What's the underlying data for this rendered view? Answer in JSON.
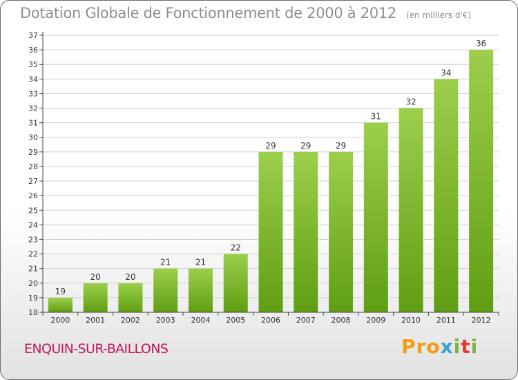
{
  "title": "Dotation Globale de Fonctionnement de 2000 à 2012",
  "subtitle": "(en milliers d'€)",
  "town": "ENQUIN-SUR-BAILLONS",
  "logo": {
    "p1": "Pro",
    "p2": "x",
    "p3": "i",
    "p4": "t",
    "p5": "i"
  },
  "colors": {
    "bar_light": "#9ccf4c",
    "bar_dark": "#5f9e12",
    "title": "#8e8e8e",
    "town": "#c2185b"
  },
  "chart_data": {
    "type": "bar",
    "categories": [
      "2000",
      "2001",
      "2002",
      "2003",
      "2004",
      "2005",
      "2006",
      "2007",
      "2008",
      "2009",
      "2010",
      "2011",
      "2012"
    ],
    "values": [
      19,
      20,
      20,
      21,
      21,
      22,
      29,
      29,
      29,
      31,
      32,
      34,
      36
    ],
    "ylim": [
      18,
      37
    ],
    "yticks": [
      18,
      19,
      20,
      21,
      22,
      23,
      24,
      25,
      26,
      27,
      28,
      29,
      30,
      31,
      32,
      33,
      34,
      35,
      36,
      37
    ],
    "grid": true,
    "xlabel": "",
    "ylabel": ""
  }
}
